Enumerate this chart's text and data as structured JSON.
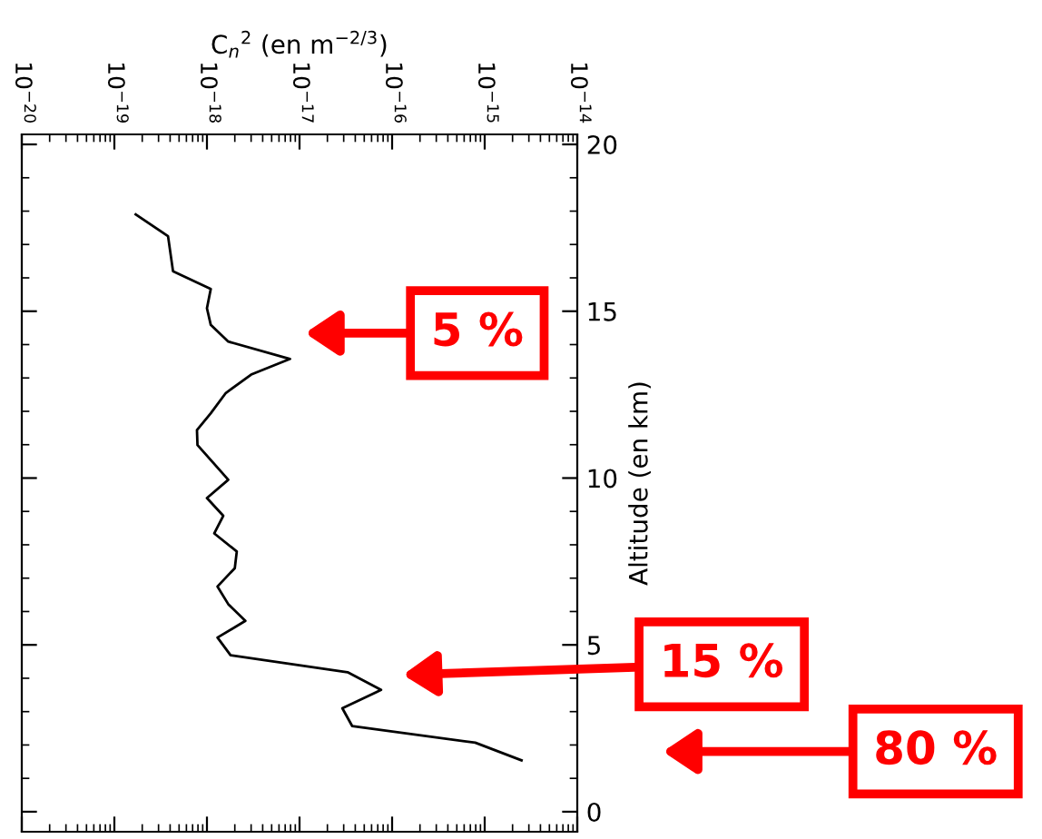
{
  "chart_data": {
    "type": "line",
    "xlabel": "C$_{n}$$^{2}$ (en m$^{−2/3}$)",
    "ylabel": "Altitude (en km)",
    "log": "x",
    "xlim": [
      1e-20,
      1e-14
    ],
    "xticks": [
      {
        "value": 1e-20,
        "label": "10$^{−20}$"
      },
      {
        "value": 1e-19,
        "label": "10$^{−19}$"
      },
      {
        "value": 1e-18,
        "label": "10$^{−18}$"
      },
      {
        "value": 1e-17,
        "label": "10$^{−17}$"
      },
      {
        "value": 1e-16,
        "label": "10$^{−16}$"
      },
      {
        "value": 1e-15,
        "label": "10$^{−15}$"
      },
      {
        "value": 1e-14,
        "label": "10$^{−14}$"
      }
    ],
    "ylim": [
      -0.6,
      20.3
    ],
    "yticks": [
      0,
      5,
      10,
      15,
      20
    ],
    "grid": false,
    "legend": false,
    "marker": "none",
    "line_style": "solid",
    "series": [
      {
        "color": "#000000",
        "x": [
          1.7e-19,
          3.8e-19,
          4.3e-19,
          1.1e-18,
          1e-18,
          1.1e-18,
          1.7e-18,
          7.9e-18,
          3e-18,
          1.6e-18,
          1.1e-18,
          7.8e-19,
          7.9e-19,
          1.7e-18,
          1e-18,
          1.5e-18,
          1.2e-18,
          2.1e-18,
          2e-18,
          1.3e-18,
          1.7e-18,
          2.6e-18,
          1.3e-18,
          1.8e-18,
          3.3e-17,
          7.6e-17,
          2.9e-17,
          3.7e-17,
          7.9e-16,
          2.5e-15
        ],
        "values": [
          17.9,
          17.25,
          16.2,
          15.67,
          15.09,
          14.59,
          14.09,
          13.57,
          13.1,
          12.55,
          11.94,
          11.44,
          10.99,
          9.95,
          9.4,
          8.87,
          8.34,
          7.8,
          7.3,
          6.75,
          6.22,
          5.72,
          5.22,
          4.69,
          4.18,
          3.65,
          3.1,
          2.57,
          2.07,
          1.54
        ]
      }
    ],
    "annotations": [
      "5 %",
      "15 %",
      "80 %"
    ]
  }
}
